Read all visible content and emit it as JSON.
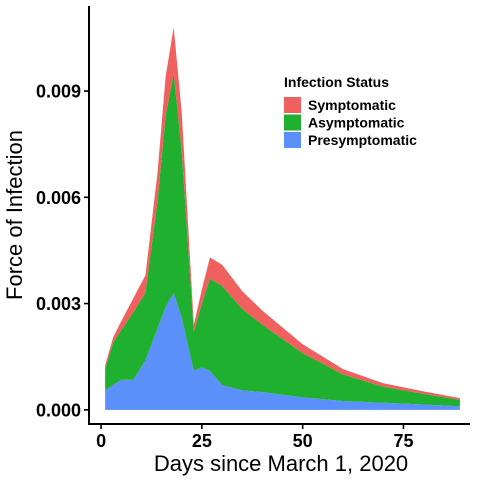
{
  "chart_data": {
    "type": "area",
    "stacked": true,
    "xlabel": "Days since March 1, 2020",
    "ylabel": "Force of Infection",
    "xlim": [
      -3,
      91.5
    ],
    "ylim": [
      -0.0004,
      0.0114
    ],
    "x_ticks": [
      0,
      25,
      50,
      75
    ],
    "x_tick_labels": [
      "0",
      "25",
      "50",
      "75"
    ],
    "y_ticks": [
      0,
      0.003,
      0.006,
      0.009
    ],
    "y_tick_labels": [
      "0.000",
      "0.003",
      "0.006",
      "0.009"
    ],
    "grid": false,
    "legend": {
      "title": "Infection Status",
      "position": "top-right-inside",
      "entries": [
        "Symptomatic",
        "Asymptomatic",
        "Presymptomatic"
      ]
    },
    "x": [
      1,
      3,
      5,
      8,
      11,
      14,
      16,
      18,
      20,
      23,
      25,
      27,
      30,
      35,
      40,
      50,
      60,
      70,
      80,
      89
    ],
    "series": [
      {
        "name": "Presymptomatic",
        "color": "#5b8ff9",
        "values": [
          0.00055,
          0.0007,
          0.00085,
          0.00085,
          0.0014,
          0.0023,
          0.0029,
          0.0033,
          0.0026,
          0.0011,
          0.0012,
          0.0011,
          0.0007,
          0.00055,
          0.0005,
          0.00035,
          0.00025,
          0.0002,
          0.00015,
          0.0001
        ]
      },
      {
        "name": "Asymptomatic",
        "color": "#1fb030",
        "values": [
          0.0006,
          0.0012,
          0.0014,
          0.0019,
          0.0019,
          0.0036,
          0.0054,
          0.0062,
          0.0047,
          0.0011,
          0.0018,
          0.0026,
          0.0028,
          0.0023,
          0.0019,
          0.00125,
          0.00075,
          0.00045,
          0.0003,
          0.00018
        ]
      },
      {
        "name": "Symptomatic",
        "color": "#f0605e",
        "values": [
          0.0001,
          0.00015,
          0.00025,
          0.0004,
          0.0005,
          0.0008,
          0.0011,
          0.0013,
          0.0011,
          0.0002,
          0.0004,
          0.0006,
          0.0006,
          0.0005,
          0.0004,
          0.00025,
          0.00015,
          0.0001,
          7e-05,
          5e-05
        ]
      }
    ]
  }
}
